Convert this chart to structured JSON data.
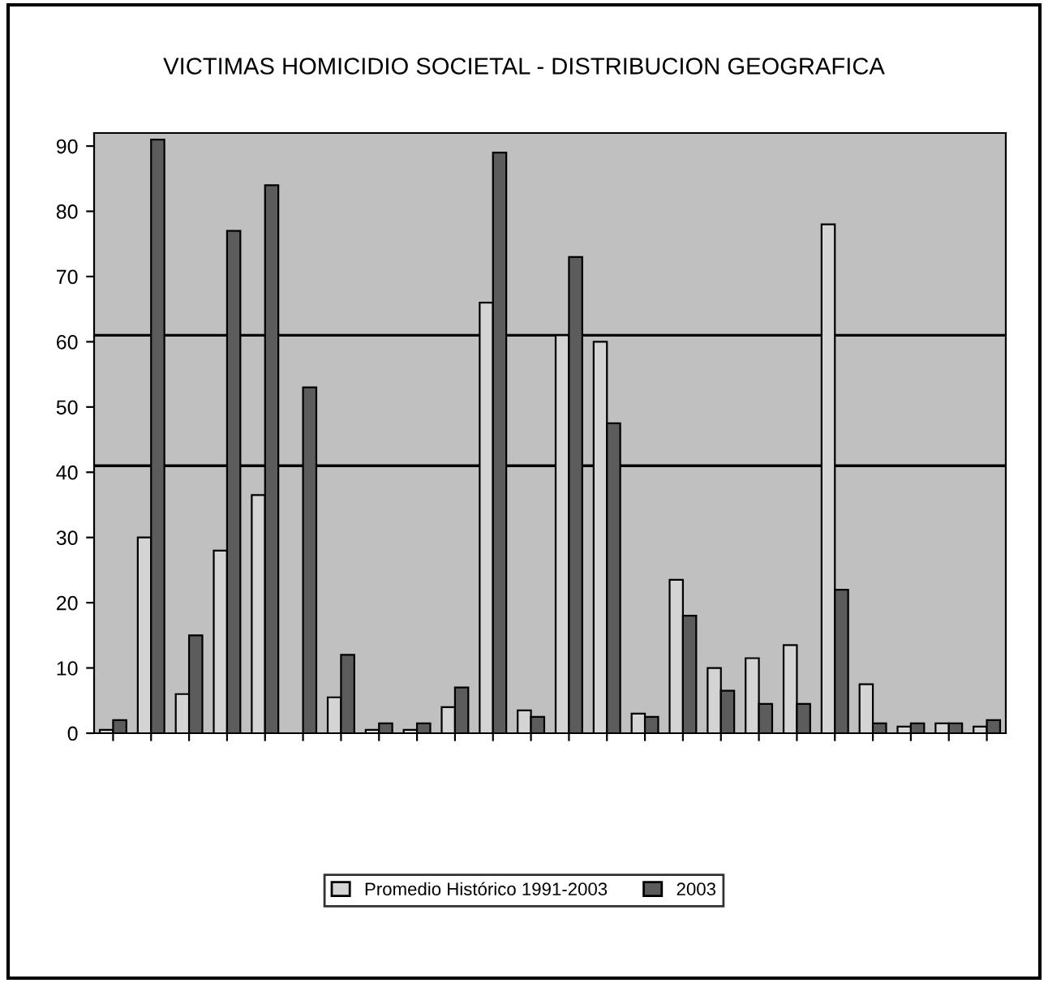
{
  "chart_data": {
    "type": "bar",
    "title": "VICTIMAS HOMICIDIO SOCIETAL - DISTRIBUCION GEOGRAFICA",
    "categories": [
      null,
      null,
      null,
      null,
      null,
      null,
      null,
      null,
      null,
      null,
      null,
      null,
      null,
      null,
      null,
      null,
      null,
      null,
      null,
      null,
      null,
      null,
      null,
      null
    ],
    "series": [
      {
        "name": "Promedio Histórico 1991-2003",
        "color": "#d4d4d4",
        "values": [
          0.5,
          30,
          6,
          28,
          36.5,
          null,
          5.5,
          0.5,
          0.5,
          4,
          66,
          3.5,
          61,
          60,
          3,
          23.5,
          10,
          11.5,
          13.5,
          78,
          7.5,
          1,
          1.5,
          1
        ]
      },
      {
        "name": "2003",
        "color": "#5c5c5c",
        "values": [
          2,
          91,
          15,
          77,
          84,
          53,
          12,
          1.5,
          1.5,
          7,
          89,
          2.5,
          73,
          47.5,
          2.5,
          18,
          6.5,
          4.5,
          4.5,
          22,
          1.5,
          1.5,
          1.5,
          2
        ]
      }
    ],
    "ylim": [
      0,
      92
    ],
    "yticks": [
      0,
      10,
      20,
      30,
      40,
      50,
      60,
      70,
      80,
      90
    ],
    "ref_lines": [
      {
        "axis": "y",
        "value": 41,
        "color": "#000000"
      },
      {
        "axis": "y",
        "value": 61,
        "color": "#000000"
      }
    ],
    "grid": false,
    "legend": "bottom"
  }
}
